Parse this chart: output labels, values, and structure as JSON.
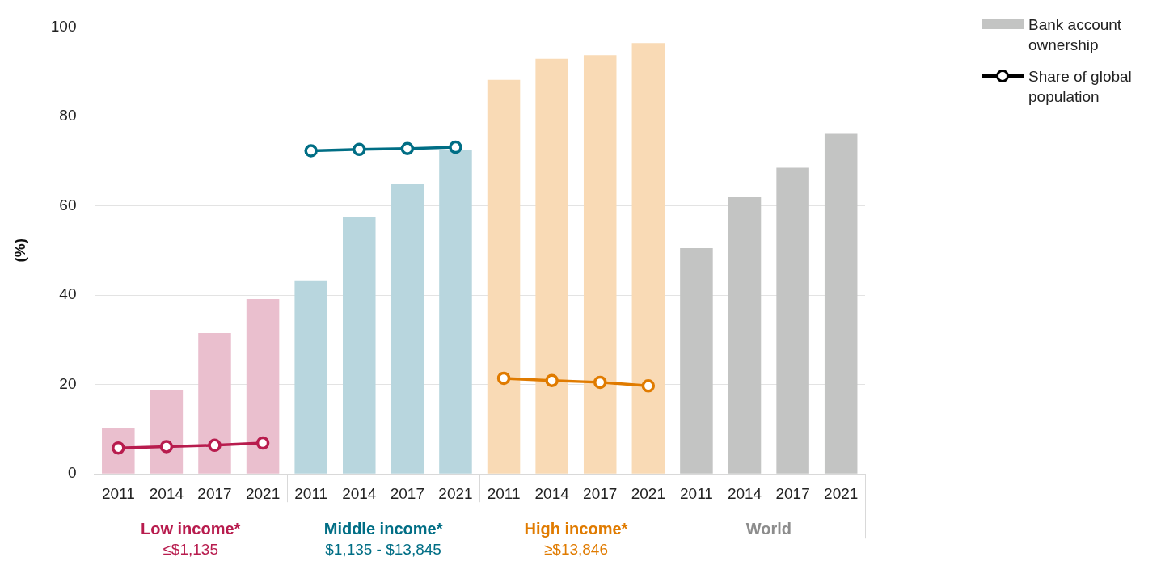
{
  "chart_data": {
    "type": "bar",
    "ylabel": "(%)",
    "categories": [
      "2011",
      "2014",
      "2017",
      "2021",
      "2011",
      "2014",
      "2017",
      "2021",
      "2011",
      "2014",
      "2017",
      "2021",
      "2011",
      "2014",
      "2017",
      "2021"
    ],
    "series": [
      {
        "name": "Bank account ownership",
        "color": "#c3c4c3",
        "colors": [
          "#eabfce",
          "#eabfce",
          "#eabfce",
          "#eabfce",
          "#b8d6de",
          "#b8d6de",
          "#b8d6de",
          "#b8d6de",
          "#f9dab5",
          "#f9dab5",
          "#f9dab5",
          "#f9dab5",
          "#c3c4c3",
          "#c3c4c3",
          "#c3c4c3",
          "#c3c4c3"
        ],
        "values": [
          10.2,
          18.8,
          31.5,
          39.1,
          43.3,
          57.4,
          65.0,
          72.4,
          88.2,
          92.9,
          93.7,
          96.4,
          50.5,
          61.9,
          68.5,
          76.1
        ]
      },
      {
        "type": "line",
        "name": "Share of global population",
        "color": "#b81c4e",
        "values": [
          5.8,
          6.1,
          6.4,
          6.9,
          null,
          null,
          null,
          null,
          null,
          null,
          null,
          null,
          null,
          null,
          null,
          null
        ]
      },
      {
        "type": "line",
        "color": "#006e85",
        "values": [
          null,
          null,
          null,
          null,
          72.3,
          72.6,
          72.8,
          73.1,
          null,
          null,
          null,
          null,
          null,
          null,
          null,
          null
        ]
      },
      {
        "type": "line",
        "color": "#e07b00",
        "values": [
          null,
          null,
          null,
          null,
          null,
          null,
          null,
          null,
          21.4,
          20.9,
          20.5,
          19.7,
          null,
          null,
          null,
          null
        ]
      }
    ],
    "ylim": [
      0,
      100
    ],
    "yticks": [
      0,
      20,
      40,
      60,
      80,
      100
    ],
    "grid": "y",
    "legend": "top right",
    "marker": "circle",
    "line_style": "solid",
    "annotations": [
      "Low income*",
      "≤$1,135",
      "Middle income*",
      "$1,135 - $13,845",
      "High income*",
      "≥$13,846",
      "World"
    ]
  }
}
